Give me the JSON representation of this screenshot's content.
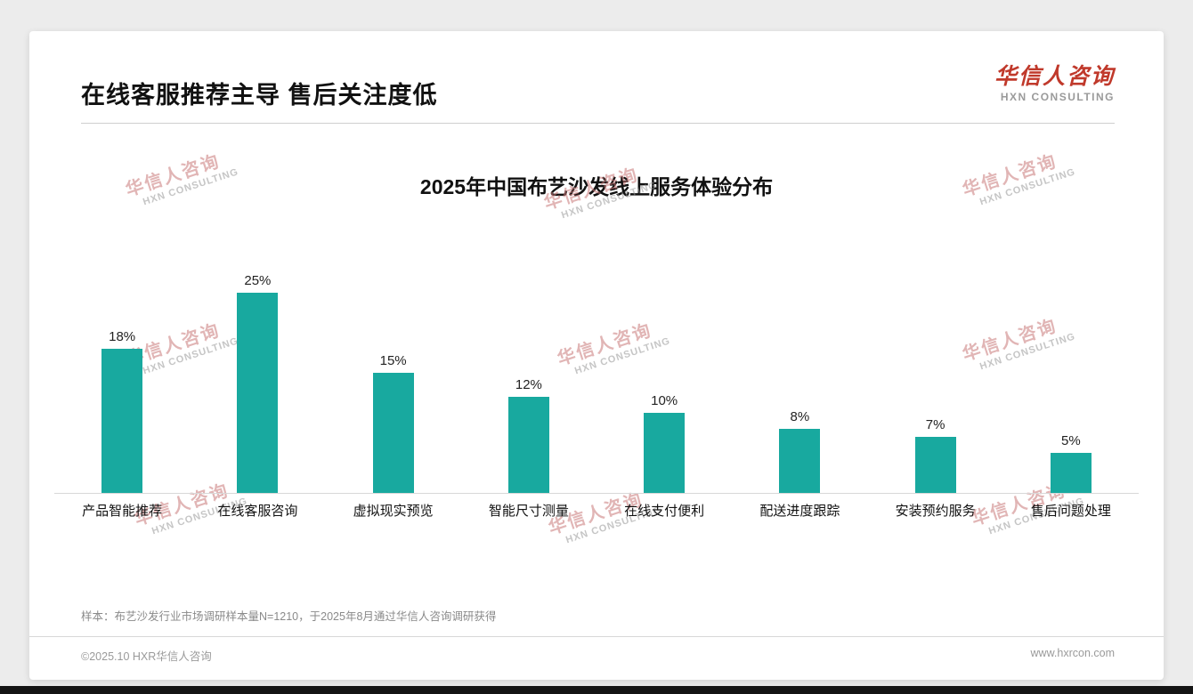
{
  "header": {
    "title": "在线客服推荐主导 售后关注度低",
    "logo_cn": "华信人咨询",
    "logo_en": "HXN CONSULTING"
  },
  "chart_data": {
    "type": "bar",
    "title": "2025年中国布艺沙发线上服务体验分布",
    "categories": [
      "产品智能推荐",
      "在线客服咨询",
      "虚拟现实预览",
      "智能尺寸测量",
      "在线支付便利",
      "配送进度跟踪",
      "安装预约服务",
      "售后问题处理"
    ],
    "values": [
      18,
      25,
      15,
      12,
      10,
      8,
      7,
      5
    ],
    "unit": "%",
    "bar_color": "#18a99f",
    "ylim": [
      0,
      27
    ],
    "grid": false,
    "legend": "none"
  },
  "watermark": {
    "cn": "华信人咨询",
    "en": "HXN CONSULTING"
  },
  "footnote": "样本：布艺沙发行业市场调研样本量N=1210，于2025年8月通过华信人咨询调研获得",
  "footer": {
    "left": "©2025.10 HXR华信人咨询",
    "right": "www.hxrcon.com"
  }
}
